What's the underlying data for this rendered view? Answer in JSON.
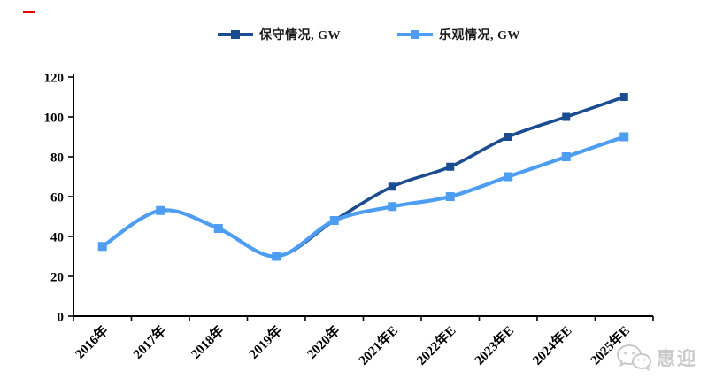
{
  "decorations": {
    "red_dash_color": "#e60000"
  },
  "chart_data": {
    "type": "line",
    "categories": [
      "2016年",
      "2017年",
      "2018年",
      "2019年",
      "2020年",
      "2021年E",
      "2022年E",
      "2023年E",
      "2024年E",
      "2025年E"
    ],
    "series": [
      {
        "name": "保守情况, GW",
        "color": "#1A4C8F",
        "values": [
          35,
          53,
          44,
          30,
          48,
          65,
          75,
          90,
          100,
          110
        ]
      },
      {
        "name": "乐观情况, GW",
        "color": "#4D9EF2",
        "values": [
          35,
          53,
          44,
          30,
          48,
          55,
          60,
          70,
          80,
          90
        ]
      }
    ],
    "title": "",
    "xlabel": "",
    "ylabel": "",
    "ylim": [
      0,
      120
    ],
    "yticks": [
      0,
      20,
      40,
      60,
      80,
      100,
      120
    ],
    "grid": false,
    "legend_position": "top",
    "marker": "square",
    "smooth": true,
    "axis_color": "#000000"
  },
  "watermark": {
    "text": "惠迎",
    "icon": "wechat-icon",
    "color": "#c9c9c9"
  }
}
